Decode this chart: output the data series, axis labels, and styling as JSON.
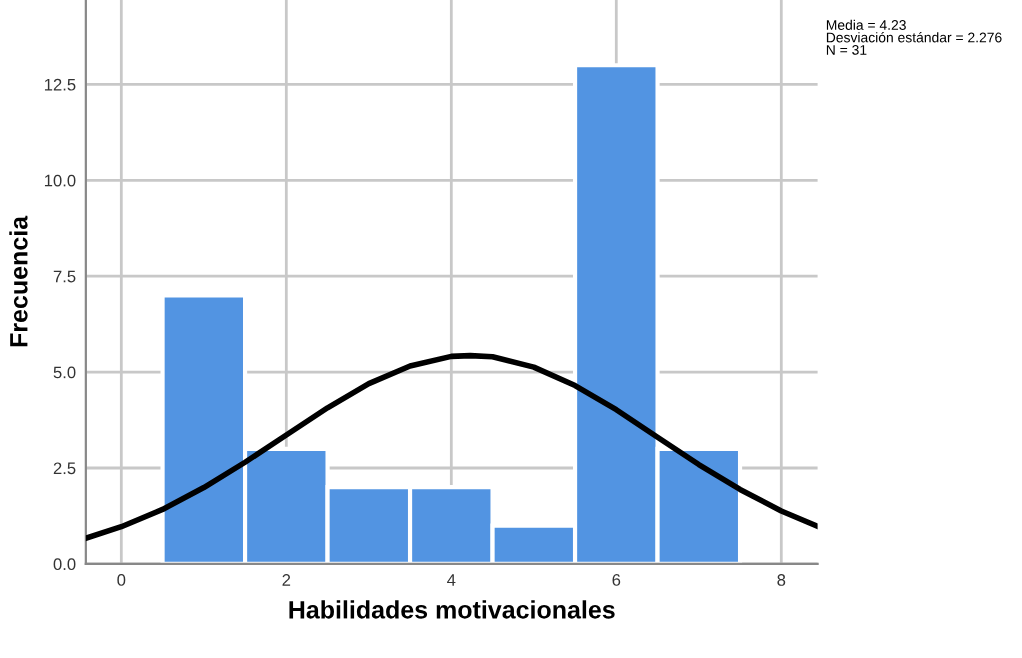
{
  "chart_data": {
    "type": "histogram",
    "xlabel": "Habilidades motivacionales",
    "ylabel": "Frecuencia",
    "bins": [
      0.5,
      1.5,
      2.5,
      3.5,
      4.5,
      5.5,
      6.5,
      7.5
    ],
    "values": [
      7,
      3,
      2,
      2,
      1,
      13,
      3
    ],
    "color": "#5294e2",
    "series": [
      {
        "type": "line",
        "color": "#000000",
        "x": [
          -0.43,
          0,
          0.5,
          1,
          1.5,
          2,
          2.5,
          3,
          3.5,
          4,
          4.23,
          4.5,
          5,
          5.5,
          6,
          6.5,
          7,
          7.5,
          8,
          8.44
        ],
        "values": [
          0.67,
          0.97,
          1.42,
          1.99,
          2.65,
          3.36,
          4.07,
          4.7,
          5.16,
          5.41,
          5.43,
          5.4,
          5.13,
          4.65,
          4.02,
          3.3,
          2.59,
          1.94,
          1.38,
          0.98
        ]
      }
    ],
    "xlim": [
      -0.43,
      8.44
    ],
    "xticks": [
      0,
      2,
      4,
      6,
      8
    ],
    "ylim": [
      0,
      14.7
    ],
    "yticks": [
      {
        "value": 0,
        "label": "0.0"
      },
      {
        "value": 2.5,
        "label": "2.5"
      },
      {
        "value": 5,
        "label": "5.0"
      },
      {
        "value": 7.5,
        "label": "7.5"
      },
      {
        "value": 10,
        "label": "10.0"
      },
      {
        "value": 12.5,
        "label": "12.5"
      }
    ],
    "grid": true,
    "annotations": [
      "Media = 4.23\nDesviación estándar = 2.276\nN = 31"
    ]
  }
}
